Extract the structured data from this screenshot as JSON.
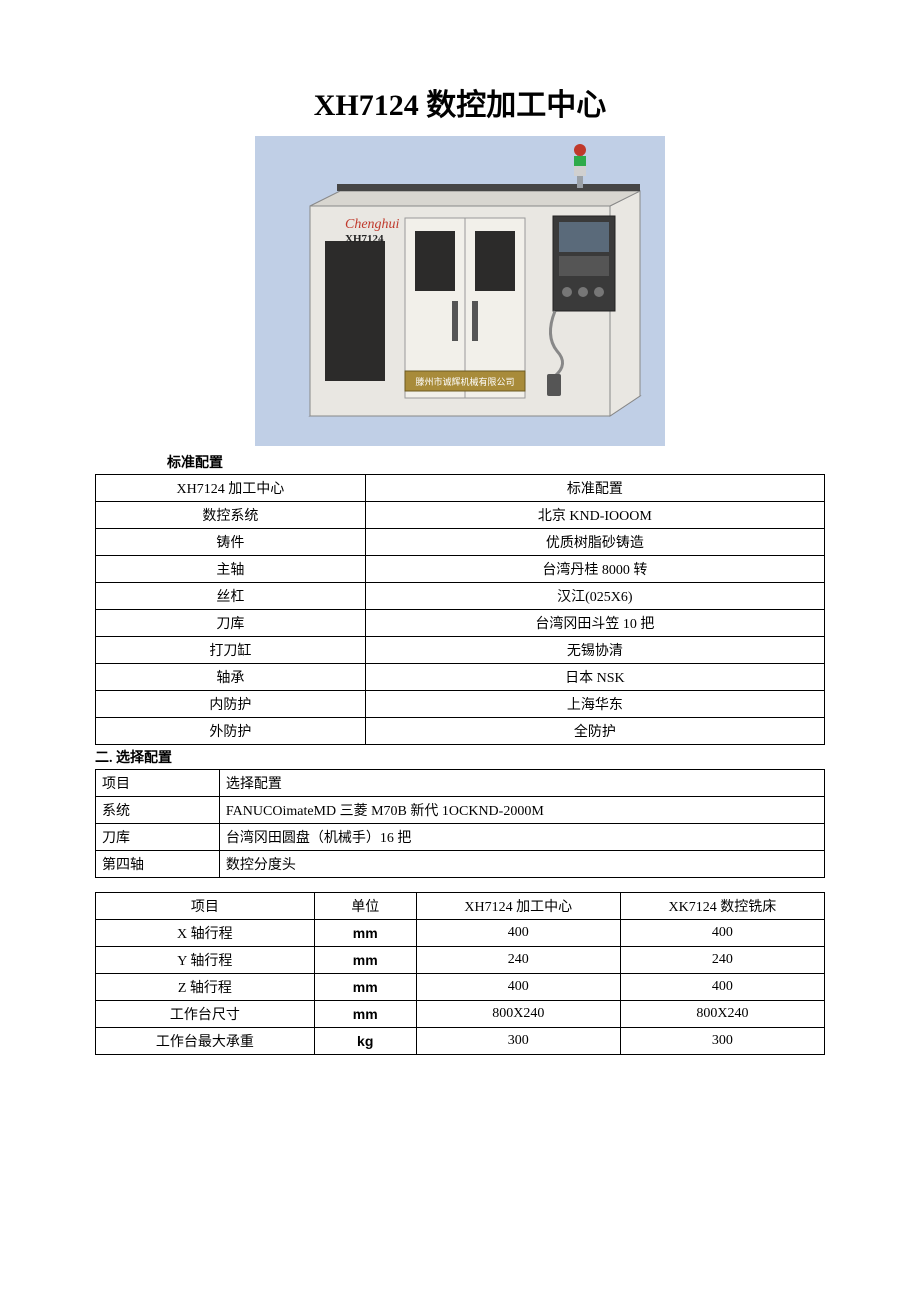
{
  "title": "XH7124 数控加工中心",
  "image": {
    "bg": "#c0cfe6",
    "body_fill": "#e9e7e2",
    "body_stroke": "#8a8a86",
    "dark_panel": "#2c2b2a",
    "control_box": "#3a3a3a",
    "control_screen": "#5a6a7a",
    "plaque": "#a88b3a",
    "plaque_text": "滕州市诚辉机械有限公司",
    "brand": "Chenghui",
    "brand_color": "#c0392b",
    "model": "XH7124",
    "light_green": "#2eab4a",
    "light_red": "#c0392b",
    "light_pole": "#9aa0a6"
  },
  "std_label": "标准配置",
  "std_table": {
    "rows": [
      [
        "XH7124 加工中心",
        "标准配置"
      ],
      [
        "数控系统",
        "北京 KND-IOOOM"
      ],
      [
        "铸件",
        "优质树脂砂铸造"
      ],
      [
        "主轴",
        "台湾丹桂 8000 转"
      ],
      [
        "丝杠",
        "汉江(025X6)"
      ],
      [
        "刀库",
        "台湾冈田斗笠 10 把"
      ],
      [
        "打刀缸",
        "无锡协清"
      ],
      [
        "轴承",
        "日本 NSK"
      ],
      [
        "内防护",
        "上海华东"
      ],
      [
        "外防护",
        "全防护"
      ]
    ]
  },
  "opt_label": "二. 选择配置",
  "opt_table": {
    "rows": [
      [
        "项目",
        "选择配置"
      ],
      [
        "系统",
        "FANUCOimateMD 三菱 M70B 新代 1OCKND-2000M"
      ],
      [
        "刀库",
        "台湾冈田圆盘（机械手）16 把"
      ],
      [
        "第四轴",
        "数控分度头"
      ]
    ]
  },
  "spec_table": {
    "header": [
      "项目",
      "单位",
      "XH7124 加工中心",
      "XK7124 数控铣床"
    ],
    "rows": [
      [
        "X 轴行程",
        "mm",
        "400",
        "400"
      ],
      [
        "Y 轴行程",
        "mm",
        "240",
        "240"
      ],
      [
        "Z 轴行程",
        "mm",
        "400",
        "400"
      ],
      [
        "工作台尺寸",
        "mm",
        "800X240",
        "800X240"
      ],
      [
        "工作台最大承重",
        "kg",
        "300",
        "300"
      ]
    ]
  }
}
